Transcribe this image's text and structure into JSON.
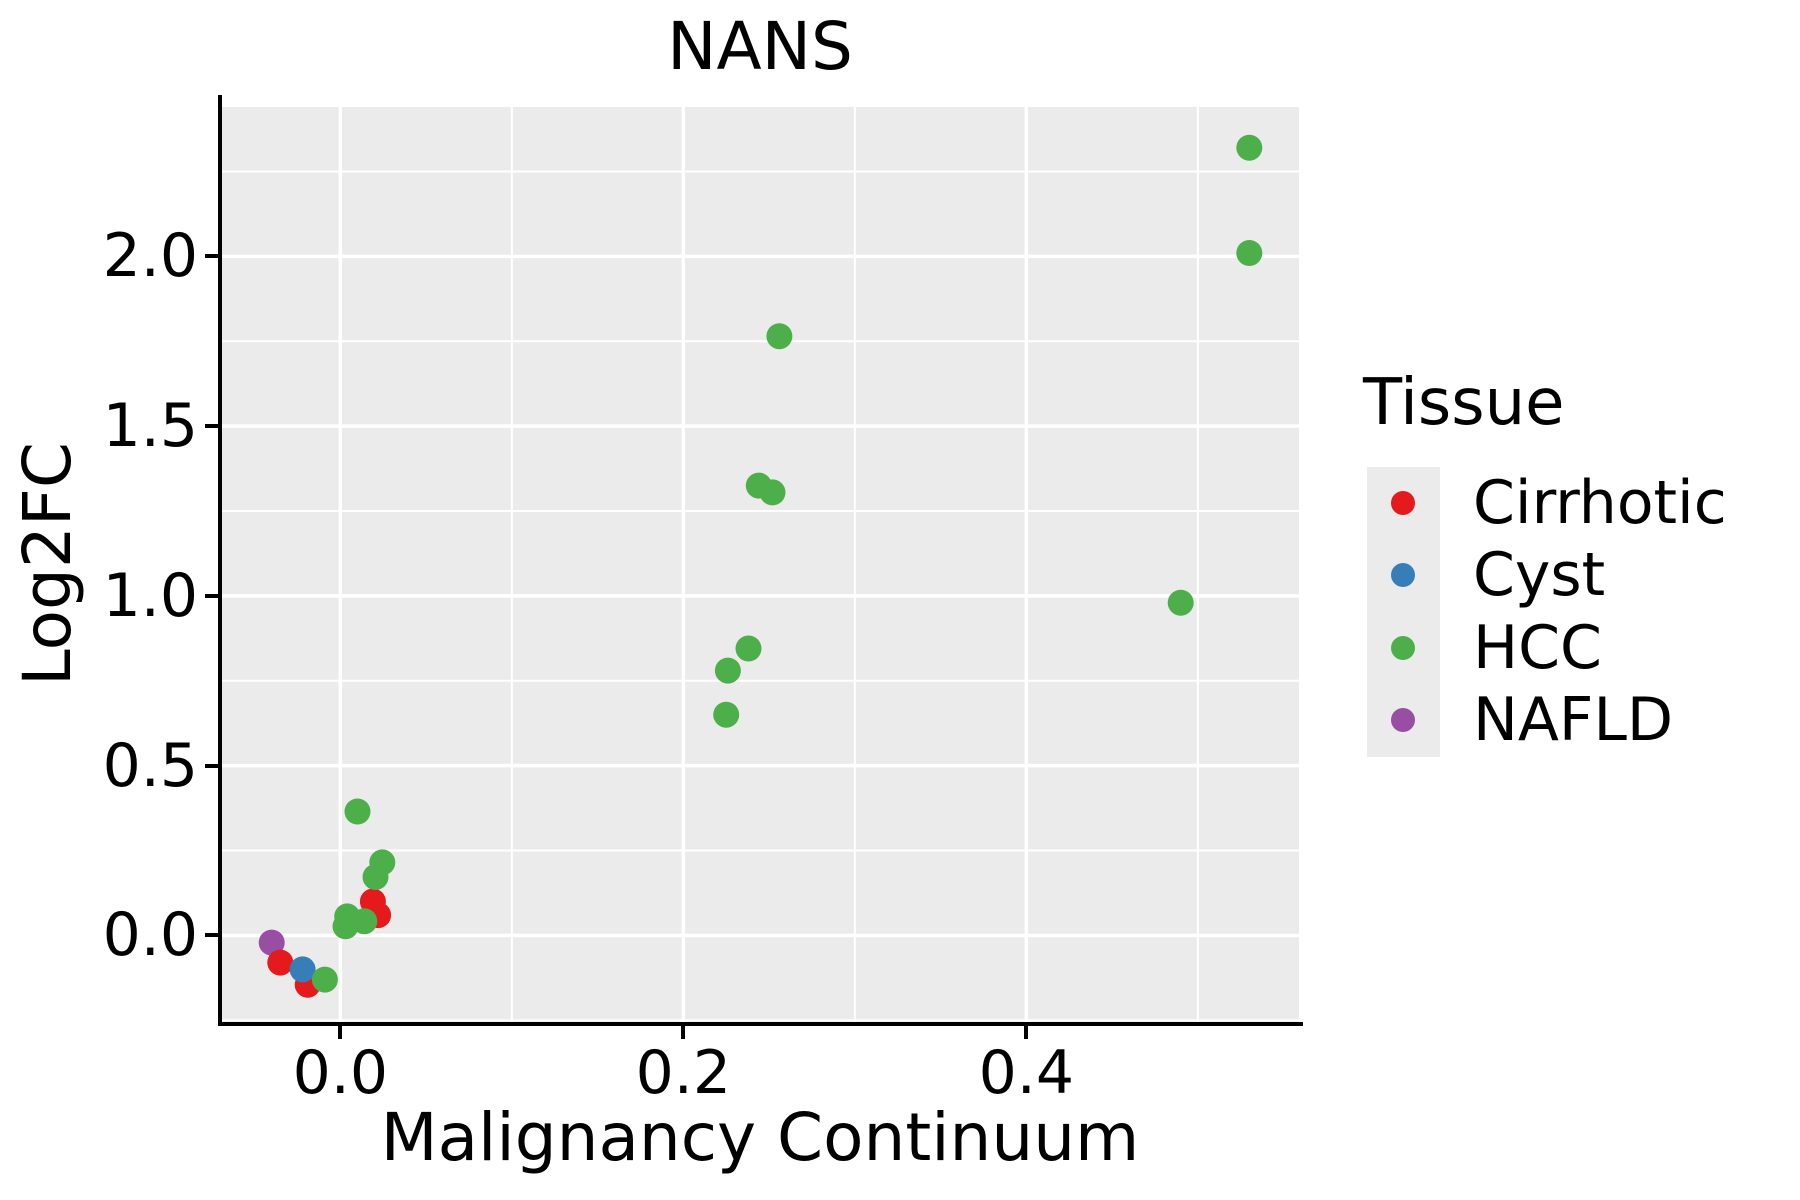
{
  "figure_title": "NANS",
  "chart_data": {
    "type": "scatter",
    "title": "NANS",
    "xlabel": "Malignancy Continuum",
    "ylabel": "Log2FC",
    "xlim": [
      -0.069,
      0.559
    ],
    "ylim": [
      -0.255,
      2.44
    ],
    "x_ticks": [
      0.0,
      0.2,
      0.4
    ],
    "x_tick_labels": [
      "0.0",
      "0.2",
      "0.4"
    ],
    "y_ticks": [
      0.0,
      0.5,
      1.0,
      1.5,
      2.0
    ],
    "y_tick_labels": [
      "0.0",
      "0.5",
      "1.0",
      "1.5",
      "2.0"
    ],
    "x_minor_ticks": [
      0.1,
      0.3,
      0.5
    ],
    "y_minor_ticks": [
      -0.25,
      0.25,
      0.75,
      1.25,
      1.75,
      2.25
    ],
    "grid": true,
    "panel_bg": "#EBEBEB",
    "grid_color": "#FFFFFF",
    "text_color": "#000000",
    "legend": {
      "title": "Tissue",
      "position": "right"
    },
    "series": [
      {
        "name": "Cirrhotic",
        "color": "#E41A1C",
        "points": [
          [
            0.019,
            0.1
          ],
          [
            0.022,
            0.06
          ],
          [
            -0.035,
            -0.08
          ],
          [
            -0.019,
            -0.145
          ]
        ]
      },
      {
        "name": "Cyst",
        "color": "#377EB8",
        "points": [
          [
            -0.022,
            -0.1
          ]
        ]
      },
      {
        "name": "HCC",
        "color": "#4DAF4A",
        "points": [
          [
            0.53,
            2.32
          ],
          [
            0.53,
            2.01
          ],
          [
            0.256,
            1.765
          ],
          [
            0.244,
            1.325
          ],
          [
            0.252,
            1.305
          ],
          [
            0.49,
            0.98
          ],
          [
            0.238,
            0.845
          ],
          [
            0.226,
            0.78
          ],
          [
            0.225,
            0.65
          ],
          [
            0.01,
            0.365
          ],
          [
            0.0245,
            0.215
          ],
          [
            0.0205,
            0.172
          ],
          [
            0.004,
            0.056
          ],
          [
            0.014,
            0.042
          ],
          [
            0.003,
            0.027
          ],
          [
            -0.009,
            -0.13
          ]
        ]
      },
      {
        "name": "NAFLD",
        "color": "#984EA3",
        "points": [
          [
            -0.04,
            -0.021
          ]
        ]
      }
    ],
    "draw_order": [
      "NAFLD",
      "Cirrhotic",
      "Cyst",
      "HCC"
    ],
    "marker_radius_px": 13
  }
}
